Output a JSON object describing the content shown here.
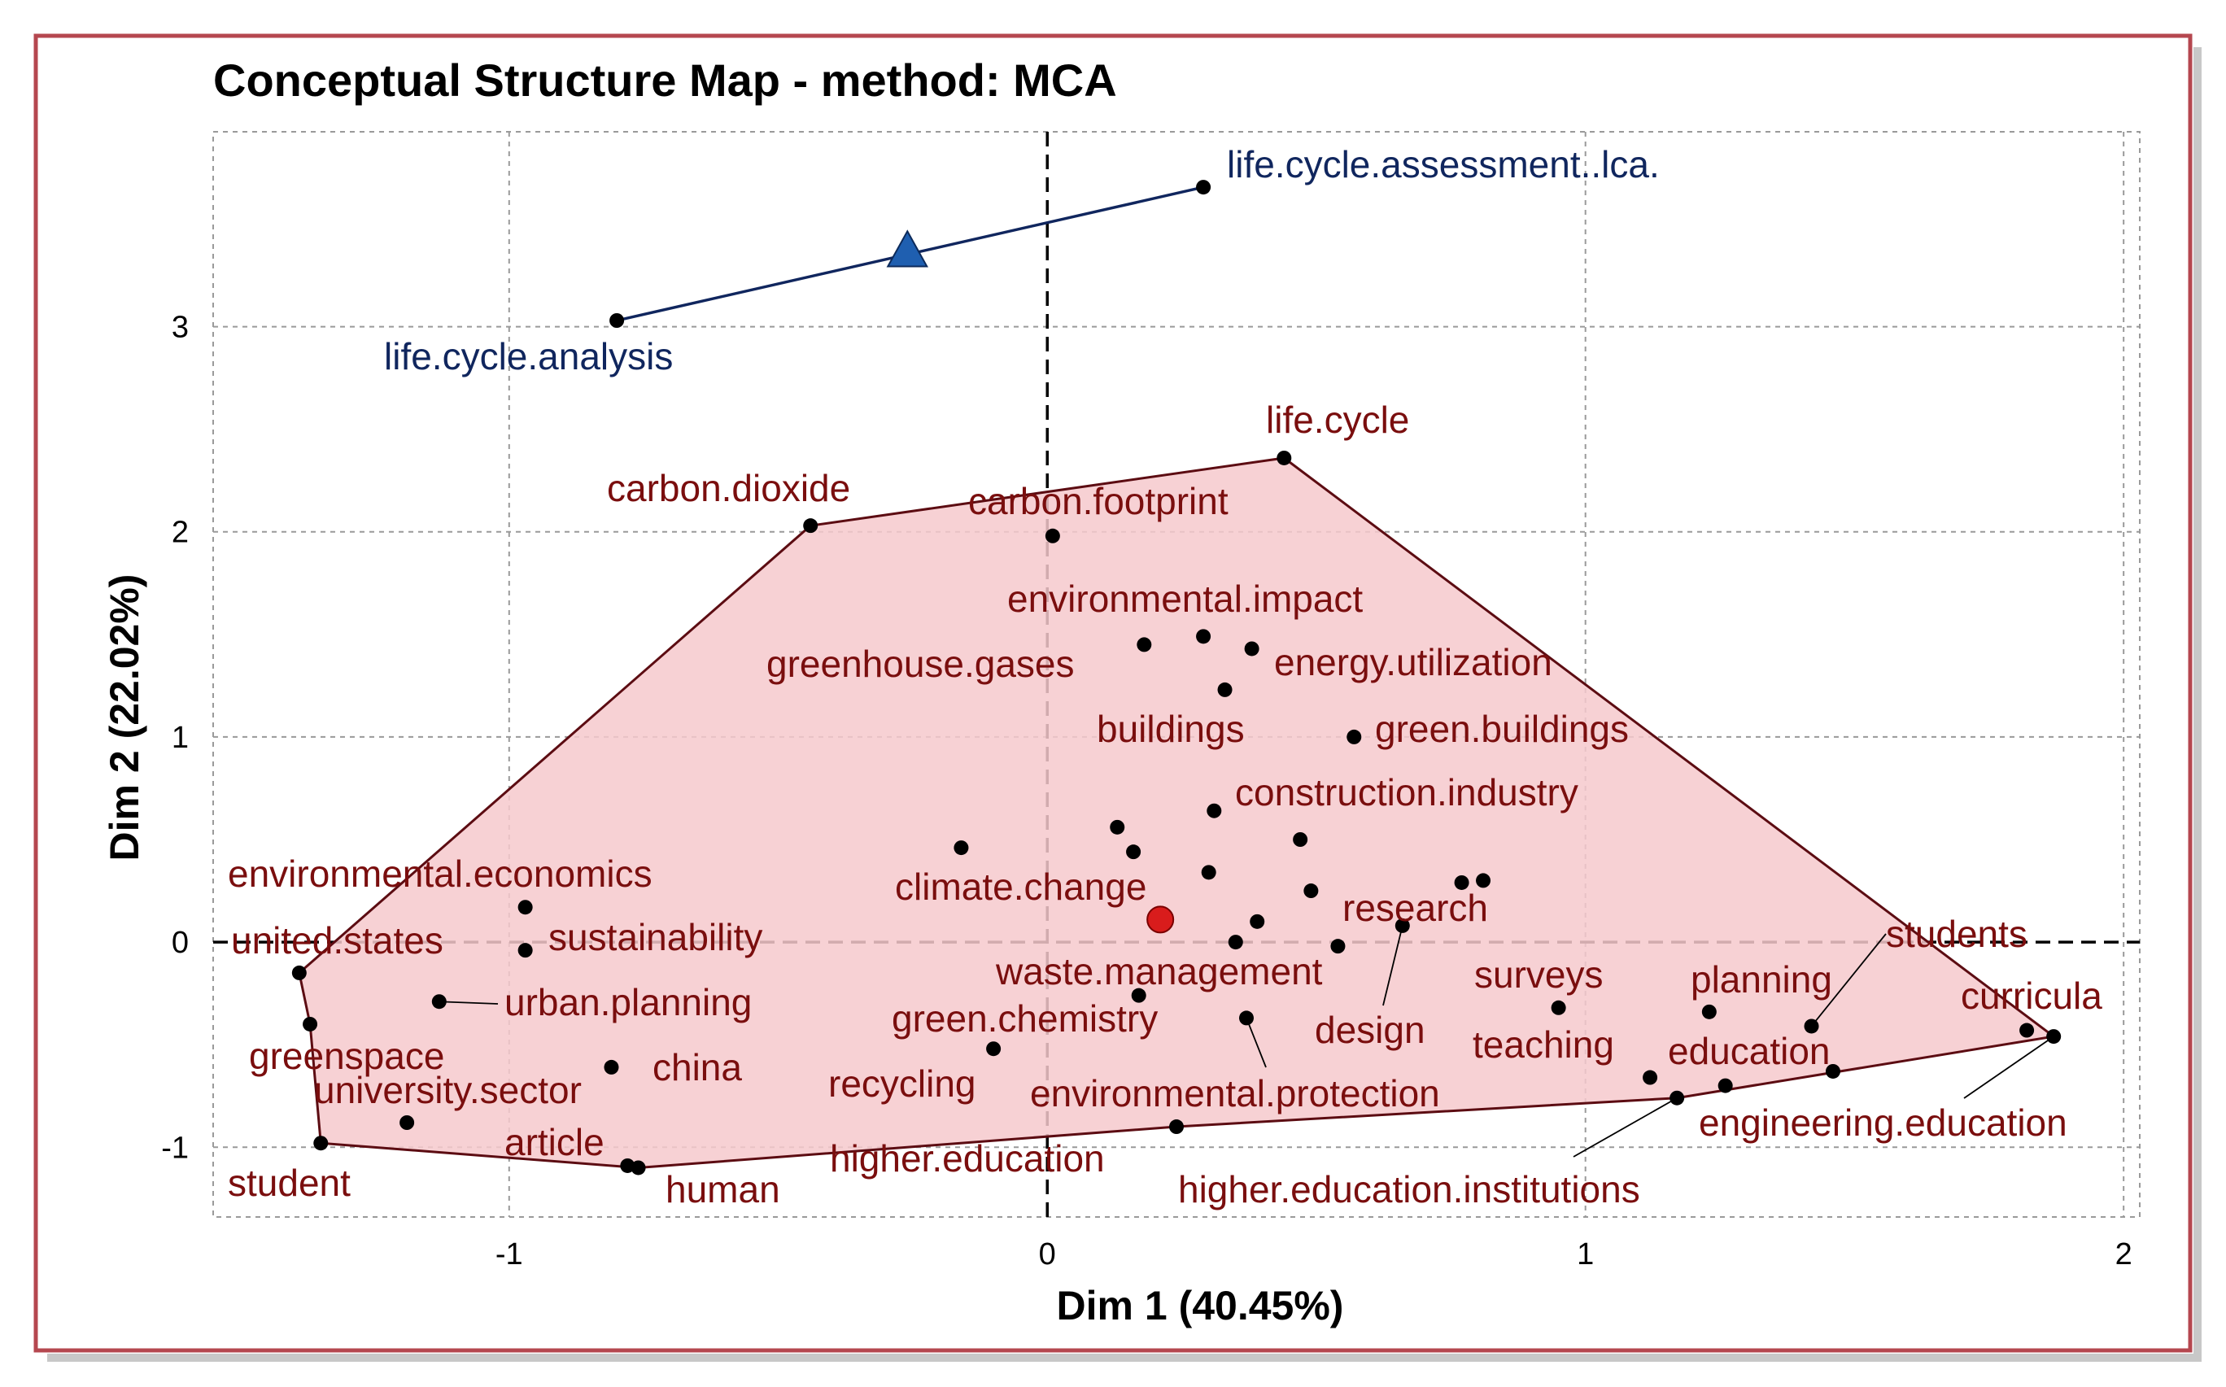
{
  "colors": {
    "frame": "#b5474f",
    "cluster1_fill": "#f6c9cc",
    "cluster1_line": "#5c0c12",
    "cluster1_label": "#7a0e0e",
    "cluster2_line": "#10265e",
    "cluster2_label": "#10265e",
    "centroid1": "#d91c1c",
    "centroid2": "#1f5fb0"
  },
  "chart_data": {
    "type": "scatter",
    "title": "Conceptual Structure Map - method: MCA",
    "xlabel": "Dim 1 (40.45%)",
    "ylabel": "Dim 2 (22.02%)",
    "xlim": [
      -1.55,
      2.03
    ],
    "ylim": [
      -1.34,
      3.95
    ],
    "xticks": [
      -1,
      0,
      1,
      2
    ],
    "yticks": [
      -1,
      0,
      1,
      2,
      3
    ],
    "grid": true,
    "clusters": [
      {
        "id": 1,
        "hull": [
          [
            -1.39,
            -0.15
          ],
          [
            -0.44,
            2.03
          ],
          [
            0.44,
            2.36
          ],
          [
            1.87,
            -0.46
          ],
          [
            1.17,
            -0.76
          ],
          [
            0.24,
            -0.9
          ],
          [
            -0.76,
            -1.1
          ],
          [
            -1.35,
            -0.98
          ],
          [
            -1.37,
            -0.4
          ]
        ],
        "centroid": [
          0.21,
          0.11
        ],
        "points": [
          {
            "label": "life.cycle",
            "x": 0.44,
            "y": 2.36
          },
          {
            "label": "carbon.dioxide",
            "x": -0.44,
            "y": 2.03
          },
          {
            "label": "carbon.footprint",
            "x": 0.01,
            "y": 1.98
          },
          {
            "label": "environmental.impact",
            "x": 0.29,
            "y": 1.49
          },
          {
            "label": "greenhouse.gases",
            "x": 0.18,
            "y": 1.45
          },
          {
            "label": "energy.utilization",
            "x": 0.38,
            "y": 1.43
          },
          {
            "label": "buildings",
            "x": 0.33,
            "y": 1.23
          },
          {
            "label": "green.buildings",
            "x": 0.57,
            "y": 1.0
          },
          {
            "label": "construction.industry",
            "x": 0.31,
            "y": 0.64
          },
          {
            "label": "climate.change",
            "x": -0.16,
            "y": 0.46
          },
          {
            "label": "",
            "x": 0.13,
            "y": 0.56
          },
          {
            "label": "",
            "x": 0.16,
            "y": 0.44
          },
          {
            "label": "",
            "x": 0.3,
            "y": 0.34
          },
          {
            "label": "",
            "x": 0.47,
            "y": 0.5
          },
          {
            "label": "",
            "x": 0.49,
            "y": 0.25
          },
          {
            "label": "",
            "x": 0.39,
            "y": 0.1
          },
          {
            "label": "",
            "x": 0.35,
            "y": 0.0
          },
          {
            "label": "",
            "x": 0.54,
            "y": -0.02
          },
          {
            "label": "research",
            "x": 0.77,
            "y": 0.29
          },
          {
            "label": "",
            "x": 0.81,
            "y": 0.3
          },
          {
            "label": "design",
            "x": 0.66,
            "y": 0.08
          },
          {
            "label": "waste.management",
            "x": 0.17,
            "y": -0.26
          },
          {
            "label": "green.chemistry",
            "x": -0.1,
            "y": -0.52
          },
          {
            "label": "environmental.protection",
            "x": 0.37,
            "y": -0.37
          },
          {
            "label": "surveys",
            "x": 0.95,
            "y": -0.32
          },
          {
            "label": "planning",
            "x": 1.23,
            "y": -0.34
          },
          {
            "label": "students",
            "x": 1.42,
            "y": -0.41
          },
          {
            "label": "curricula",
            "x": 1.82,
            "y": -0.43
          },
          {
            "label": "",
            "x": 1.87,
            "y": -0.46
          },
          {
            "label": "teaching",
            "x": 1.12,
            "y": -0.66
          },
          {
            "label": "education",
            "x": 1.26,
            "y": -0.7
          },
          {
            "label": "engineering.education",
            "x": 1.46,
            "y": -0.63
          },
          {
            "label": "higher.education.institutions",
            "x": 1.17,
            "y": -0.76
          },
          {
            "label": "higher.education",
            "x": 0.24,
            "y": -0.9
          },
          {
            "label": "environmental.economics",
            "x": -0.97,
            "y": 0.17
          },
          {
            "label": "sustainability",
            "x": -0.97,
            "y": -0.04
          },
          {
            "label": "united.states",
            "x": -1.39,
            "y": -0.15
          },
          {
            "label": "",
            "x": -1.37,
            "y": -0.4
          },
          {
            "label": "urban.planning",
            "x": -1.13,
            "y": -0.29
          },
          {
            "label": "china",
            "x": -0.81,
            "y": -0.61
          },
          {
            "label": "greenspace",
            "x": -1.19,
            "y": -0.88
          },
          {
            "label": "student",
            "x": -1.35,
            "y": -0.98
          },
          {
            "label": "human",
            "x": -0.76,
            "y": -1.1
          },
          {
            "label": "",
            "x": -0.78,
            "y": -1.09
          }
        ]
      },
      {
        "id": 2,
        "centroid": [
          -0.26,
          3.37
        ],
        "points": [
          {
            "label": "life.cycle.assessment..lca.",
            "x": 0.29,
            "y": 3.68
          },
          {
            "label": "life.cycle.analysis",
            "x": -0.8,
            "y": 3.03
          }
        ]
      }
    ],
    "annotations": [
      {
        "text": "life.cycle.assessment..lca.",
        "cluster": 2
      },
      {
        "text": "life.cycle.analysis",
        "cluster": 2
      },
      {
        "text": "life.cycle",
        "cluster": 1
      },
      {
        "text": "carbon.dioxide",
        "cluster": 1
      },
      {
        "text": "carbon.footprint",
        "cluster": 1
      },
      {
        "text": "environmental.impact",
        "cluster": 1
      },
      {
        "text": "greenhouse.gases",
        "cluster": 1
      },
      {
        "text": "energy.utilization",
        "cluster": 1
      },
      {
        "text": "buildings",
        "cluster": 1
      },
      {
        "text": "green.buildings",
        "cluster": 1
      },
      {
        "text": "construction.industry",
        "cluster": 1
      },
      {
        "text": "environmental.economics",
        "cluster": 1
      },
      {
        "text": "climate.change",
        "cluster": 1
      },
      {
        "text": "research",
        "cluster": 1
      },
      {
        "text": "students",
        "cluster": 1
      },
      {
        "text": "united.states",
        "cluster": 1
      },
      {
        "text": "sustainability",
        "cluster": 1
      },
      {
        "text": "waste.management",
        "cluster": 1
      },
      {
        "text": "surveys",
        "cluster": 1
      },
      {
        "text": "planning",
        "cluster": 1
      },
      {
        "text": "curricula",
        "cluster": 1
      },
      {
        "text": "urban.planning",
        "cluster": 1
      },
      {
        "text": "green.chemistry",
        "cluster": 1
      },
      {
        "text": "design",
        "cluster": 1
      },
      {
        "text": "teaching",
        "cluster": 1
      },
      {
        "text": "education",
        "cluster": 1
      },
      {
        "text": "greenspace",
        "cluster": 1
      },
      {
        "text": "china",
        "cluster": 1
      },
      {
        "text": "university.sector",
        "cluster": 1
      },
      {
        "text": "recycling",
        "cluster": 1
      },
      {
        "text": "environmental.protection",
        "cluster": 1
      },
      {
        "text": "engineering.education",
        "cluster": 1
      },
      {
        "text": "article",
        "cluster": 1
      },
      {
        "text": "higher.education",
        "cluster": 1
      },
      {
        "text": "student",
        "cluster": 1
      },
      {
        "text": "human",
        "cluster": 1
      },
      {
        "text": "higher.education.institutions",
        "cluster": 1
      }
    ]
  }
}
